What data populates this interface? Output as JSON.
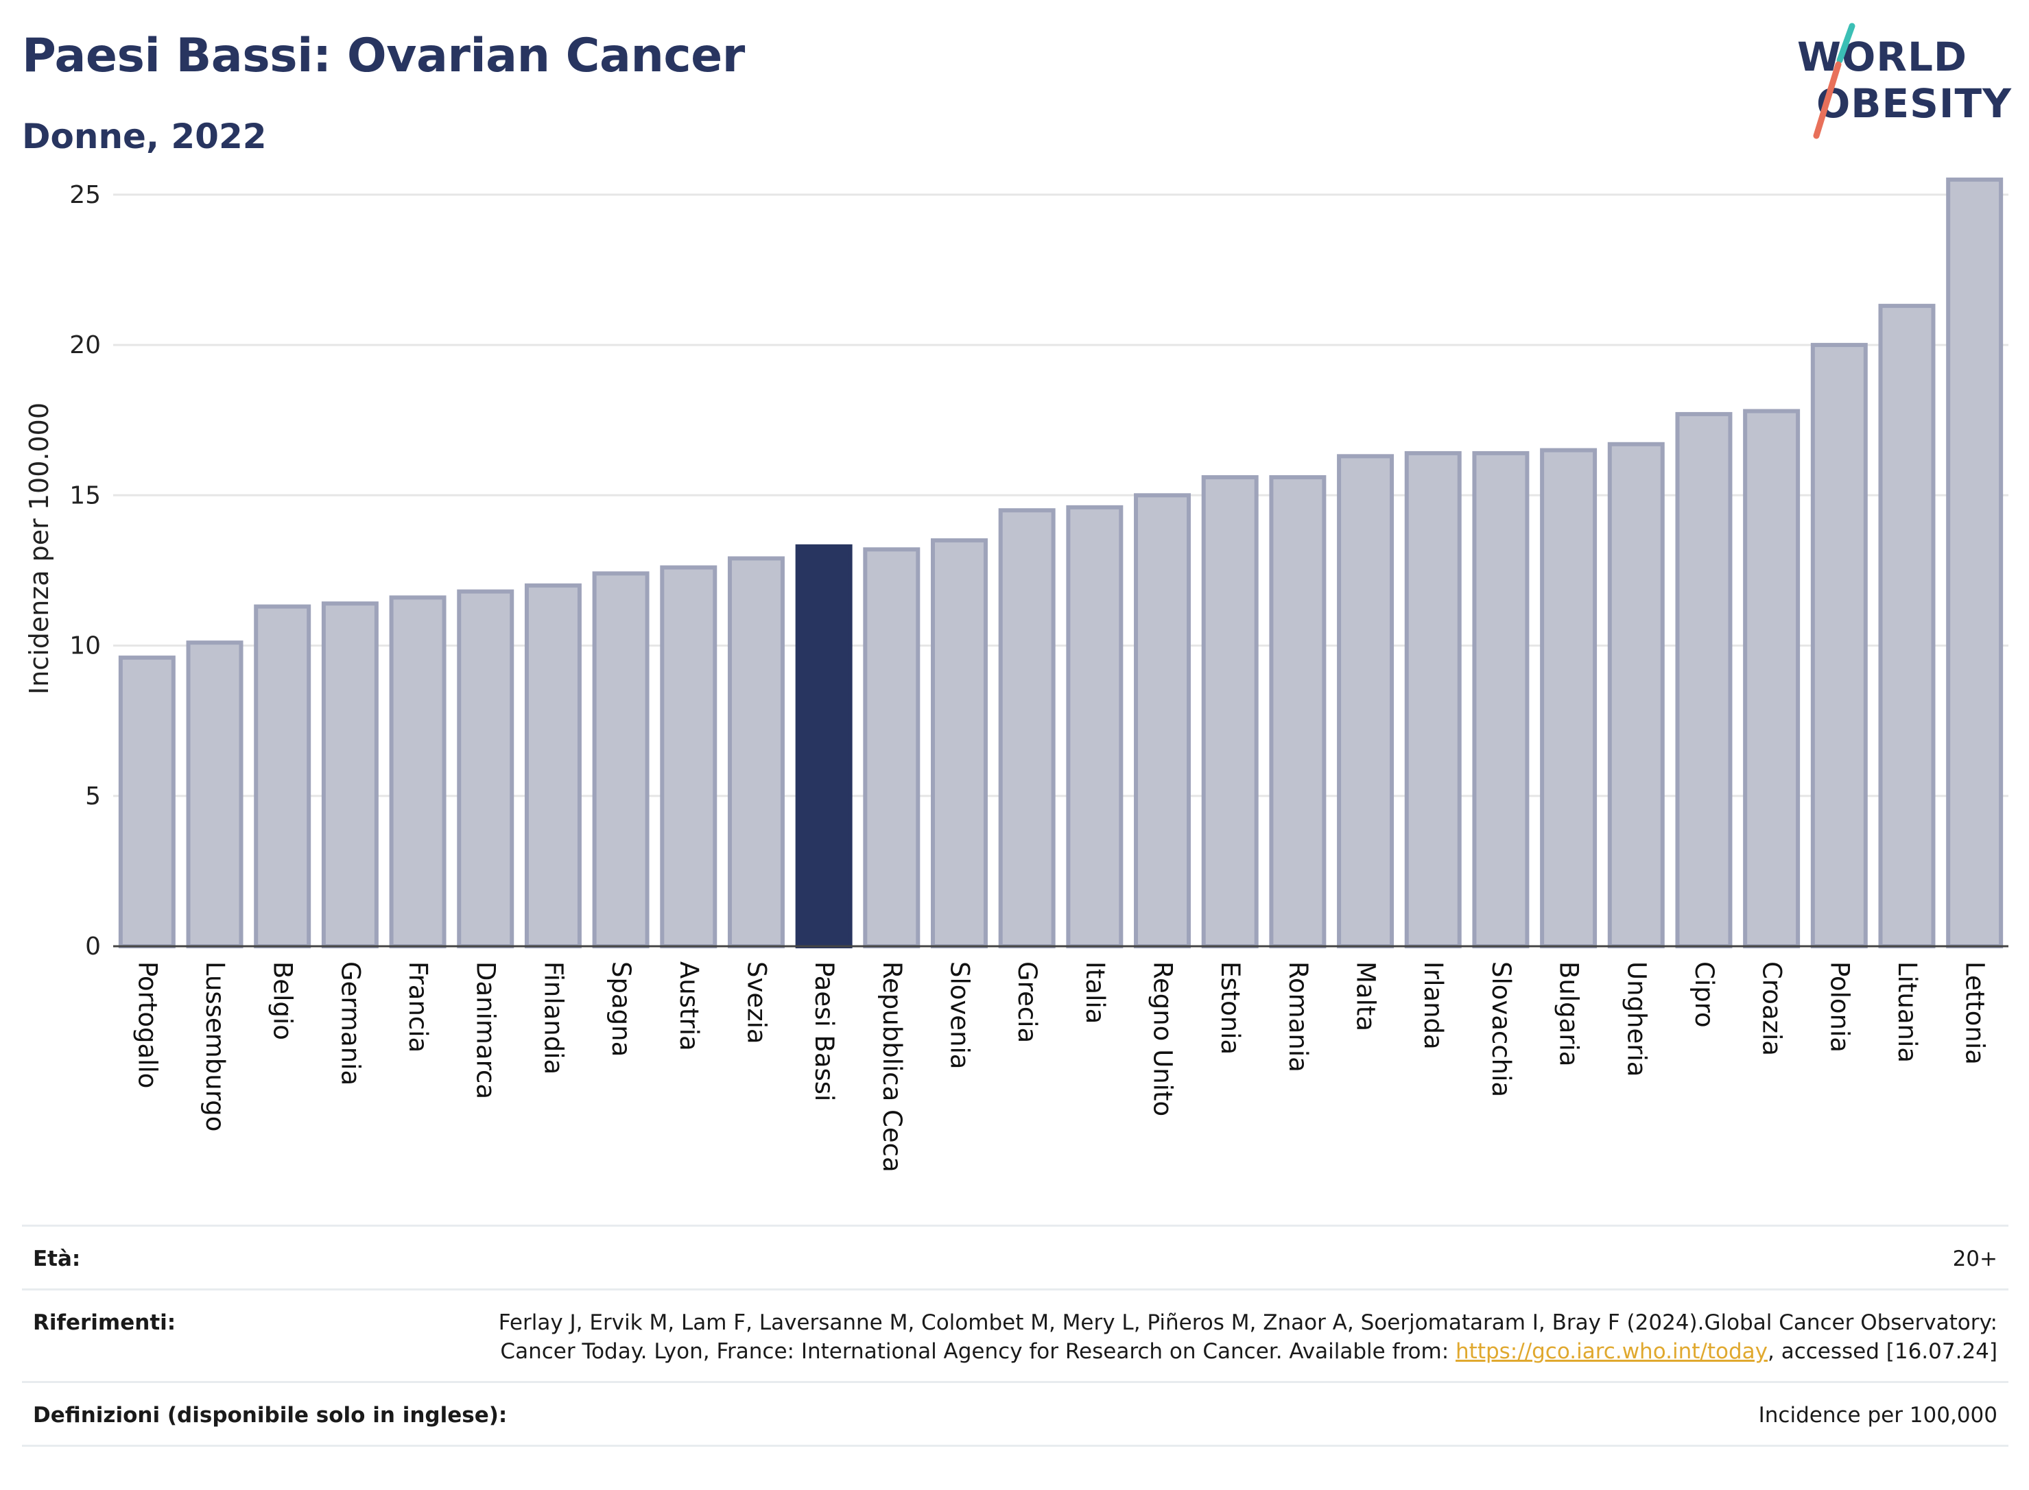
{
  "header": {
    "title": "Paesi Bassi: Ovarian Cancer",
    "subtitle": "Donne, 2022",
    "logo_line1": "WORLD",
    "logo_line2": "OBESITY"
  },
  "colors": {
    "highlight": "#283560",
    "bar": "#bfc2cf",
    "bar_border": "#9ea3ba",
    "grid": "#e6e6e6",
    "logo_teal": "#3bbfb5",
    "logo_coral": "#e8705a"
  },
  "chart_data": {
    "type": "bar",
    "title": "Paesi Bassi: Ovarian Cancer",
    "subtitle": "Donne, 2022",
    "xlabel": "",
    "ylabel": "Incidenza per 100.000",
    "ylim": [
      0,
      26
    ],
    "yticks": [
      0,
      5,
      10,
      15,
      20,
      25
    ],
    "grid": true,
    "highlight": "Paesi Bassi",
    "categories": [
      "Portogallo",
      "Lussemburgo",
      "Belgio",
      "Germania",
      "Francia",
      "Danimarca",
      "Finlandia",
      "Spagna",
      "Austria",
      "Svezia",
      "Paesi Bassi",
      "Repubblica Ceca",
      "Slovenia",
      "Grecia",
      "Italia",
      "Regno Unito",
      "Estonia",
      "Romania",
      "Malta",
      "Irlanda",
      "Slovacchia",
      "Bulgaria",
      "Ungheria",
      "Cipro",
      "Croazia",
      "Polonia",
      "Lituania",
      "Lettonia"
    ],
    "values": [
      9.6,
      10.1,
      11.3,
      11.4,
      11.6,
      11.8,
      12.0,
      12.4,
      12.6,
      12.9,
      13.3,
      13.2,
      13.5,
      14.5,
      14.6,
      15.0,
      15.6,
      15.6,
      16.3,
      16.4,
      16.4,
      16.5,
      16.7,
      17.7,
      17.8,
      20.0,
      21.3,
      25.5
    ]
  },
  "footer": {
    "age_label": "Età:",
    "age_value": "20+",
    "refs_label": "Riferimenti:",
    "refs_text": "Ferlay J, Ervik M, Lam F, Laversanne M, Colombet M, Mery L, Piñeros M, Znaor A, Soerjomataram I, Bray F (2024).Global Cancer Observatory: Cancer Today. Lyon, France: International Agency for Research on Cancer. Available from: ",
    "refs_link": "https://gco.iarc.who.int/today",
    "refs_tail": ", accessed [16.07.24]",
    "defs_label": "Definizioni (disponibile solo in inglese):",
    "defs_value": "Incidence per 100,000"
  }
}
